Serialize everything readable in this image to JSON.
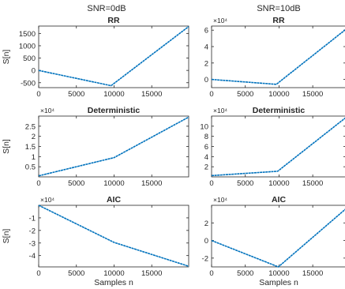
{
  "figure": {
    "column_titles": [
      "SNR=0dB",
      "SNR=10dB"
    ]
  },
  "chart_data": [
    {
      "type": "line",
      "title": "RR",
      "xlabel": "",
      "ylabel": "S[n]",
      "exponent_label": "",
      "xlim": [
        0,
        19900
      ],
      "ylim": [
        -700,
        1800
      ],
      "xticks": [
        0,
        5000,
        10000,
        15000
      ],
      "yticks": [
        -500,
        0,
        500,
        1000,
        1500
      ],
      "ytick_labels": [
        "-500",
        "0",
        "500",
        "1000",
        "1500"
      ],
      "x": [
        0,
        9600,
        19900
      ],
      "y": [
        0,
        -620,
        1780
      ],
      "color": "#0072BD"
    },
    {
      "type": "line",
      "title": "RR",
      "xlabel": "",
      "ylabel": "",
      "exponent_label": "×10⁴",
      "xlim": [
        0,
        19900
      ],
      "ylim": [
        -1,
        6.5
      ],
      "xticks": [
        0,
        5000,
        10000,
        15000
      ],
      "yticks": [
        0,
        2,
        4,
        6
      ],
      "ytick_labels": [
        "0",
        "2",
        "4",
        "6"
      ],
      "x": [
        0,
        9600,
        19900
      ],
      "y": [
        0,
        -0.6,
        6.1
      ],
      "color": "#0072BD"
    },
    {
      "type": "line",
      "title": "Deterministic",
      "xlabel": "",
      "ylabel": "S[n]",
      "exponent_label": "×10⁴",
      "xlim": [
        0,
        19900
      ],
      "ylim": [
        0,
        3
      ],
      "xticks": [
        0,
        5000,
        10000,
        15000
      ],
      "yticks": [
        0.5,
        1,
        1.5,
        2,
        2.5
      ],
      "ytick_labels": [
        "0.5",
        "1",
        "1.5",
        "2",
        "2.5"
      ],
      "x": [
        0,
        10000,
        19900
      ],
      "y": [
        0.05,
        0.95,
        2.95
      ],
      "color": "#0072BD"
    },
    {
      "type": "line",
      "title": "Deterministic",
      "xlabel": "",
      "ylabel": "",
      "exponent_label": "×10⁴",
      "xlim": [
        0,
        19900
      ],
      "ylim": [
        0,
        12
      ],
      "xticks": [
        0,
        5000,
        10000,
        15000
      ],
      "yticks": [
        2,
        4,
        6,
        8,
        10
      ],
      "ytick_labels": [
        "2",
        "4",
        "6",
        "8",
        "10"
      ],
      "x": [
        0,
        9800,
        19900
      ],
      "y": [
        0.25,
        1.1,
        11.7
      ],
      "color": "#0072BD"
    },
    {
      "type": "line",
      "title": "AIC",
      "xlabel": "Samples n",
      "ylabel": "S[n]",
      "exponent_label": "×10⁴",
      "xlim": [
        0,
        19900
      ],
      "ylim": [
        -4.9,
        0
      ],
      "xticks": [
        0,
        5000,
        10000,
        15000
      ],
      "yticks": [
        -1,
        -2,
        -3,
        -4
      ],
      "ytick_labels": [
        "-1",
        "-2",
        "-3",
        "-4"
      ],
      "x": [
        0,
        10000,
        19900
      ],
      "y": [
        0,
        -2.95,
        -4.85
      ],
      "color": "#0072BD"
    },
    {
      "type": "line",
      "title": "AIC",
      "xlabel": "Samples n",
      "ylabel": "",
      "exponent_label": "×10⁴",
      "xlim": [
        0,
        19900
      ],
      "ylim": [
        -3,
        4
      ],
      "xticks": [
        0,
        5000,
        10000,
        15000
      ],
      "yticks": [
        -2,
        0,
        2
      ],
      "ytick_labels": [
        "-2",
        "0",
        "2"
      ],
      "x": [
        0,
        9900,
        19900
      ],
      "y": [
        0,
        -3,
        3.6
      ],
      "color": "#0072BD"
    }
  ]
}
